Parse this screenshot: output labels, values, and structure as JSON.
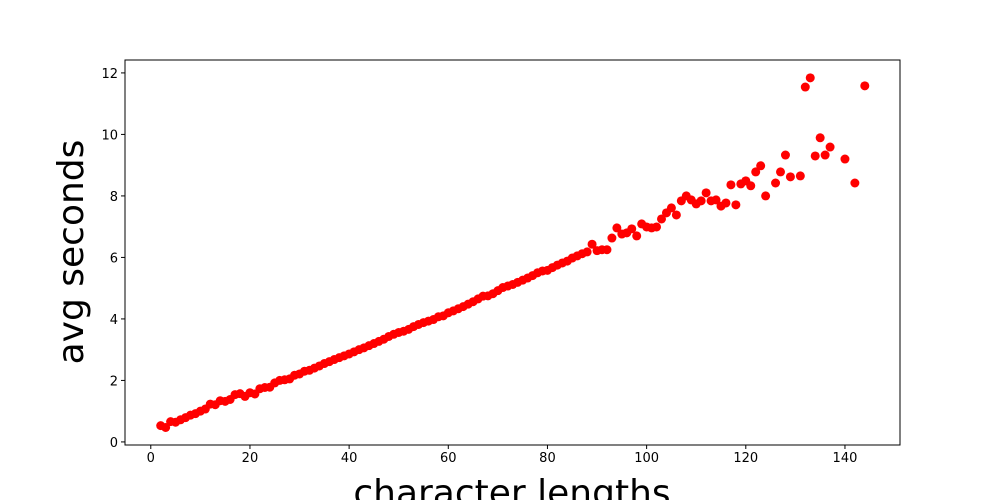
{
  "chart_data": {
    "type": "scatter",
    "x_label": "character lengths",
    "y_label": "avg seconds",
    "color": "#ff0000",
    "xlim": [
      -5.2,
      151.1
    ],
    "ylim": [
      -0.1,
      12.42
    ],
    "xticks": [
      0,
      20,
      40,
      60,
      80,
      100,
      120,
      140
    ],
    "yticks": [
      0,
      2,
      4,
      6,
      8,
      10,
      12
    ],
    "x": [
      2,
      3,
      4,
      5,
      6,
      7,
      8,
      9,
      10,
      11,
      12,
      13,
      14,
      15,
      16,
      17,
      18,
      19,
      20,
      21,
      22,
      23,
      24,
      25,
      26,
      27,
      28,
      29,
      30,
      31,
      32,
      33,
      34,
      35,
      36,
      37,
      38,
      39,
      40,
      41,
      42,
      43,
      44,
      45,
      46,
      47,
      48,
      49,
      50,
      51,
      52,
      53,
      54,
      55,
      56,
      57,
      58,
      59,
      60,
      61,
      62,
      63,
      64,
      65,
      66,
      67,
      68,
      69,
      70,
      71,
      72,
      73,
      74,
      75,
      76,
      77,
      78,
      79,
      80,
      81,
      82,
      83,
      84,
      85,
      86,
      87,
      88,
      89,
      90,
      91,
      92,
      93,
      94,
      95,
      96,
      97,
      98,
      99,
      100,
      101,
      102,
      103,
      104,
      105,
      106,
      107,
      108,
      109,
      110,
      111,
      112,
      113,
      114,
      115,
      116,
      117,
      118,
      119,
      120,
      121,
      122,
      123,
      124,
      126,
      127,
      128,
      129,
      131,
      132,
      133,
      134,
      135,
      136,
      137,
      140,
      142,
      144
    ],
    "y": [
      0.53,
      0.47,
      0.66,
      0.64,
      0.72,
      0.79,
      0.87,
      0.92,
      1.0,
      1.07,
      1.23,
      1.21,
      1.34,
      1.32,
      1.38,
      1.54,
      1.57,
      1.48,
      1.6,
      1.56,
      1.73,
      1.77,
      1.78,
      1.92,
      2.0,
      2.02,
      2.05,
      2.17,
      2.21,
      2.3,
      2.33,
      2.4,
      2.47,
      2.55,
      2.61,
      2.68,
      2.74,
      2.8,
      2.86,
      2.93,
      3.0,
      3.06,
      3.13,
      3.2,
      3.27,
      3.34,
      3.43,
      3.5,
      3.56,
      3.6,
      3.66,
      3.75,
      3.82,
      3.88,
      3.93,
      3.98,
      4.07,
      4.1,
      4.2,
      4.26,
      4.33,
      4.4,
      4.48,
      4.56,
      4.65,
      4.74,
      4.75,
      4.82,
      4.92,
      5.02,
      5.07,
      5.12,
      5.19,
      5.26,
      5.33,
      5.41,
      5.5,
      5.56,
      5.58,
      5.67,
      5.75,
      5.82,
      5.88,
      5.98,
      6.05,
      6.12,
      6.18,
      6.43,
      6.22,
      6.25,
      6.25,
      6.63,
      6.96,
      6.76,
      6.8,
      6.93,
      6.7,
      7.09,
      6.99,
      6.96,
      6.99,
      7.25,
      7.45,
      7.61,
      7.38,
      7.84,
      8.0,
      7.87,
      7.74,
      7.84,
      8.1,
      7.84,
      7.87,
      7.67,
      7.77,
      8.36,
      7.71,
      8.39,
      8.49,
      8.33,
      8.78,
      8.98,
      8.0,
      8.42,
      8.78,
      9.33,
      8.62,
      8.65,
      11.54,
      11.84,
      9.3,
      9.89,
      9.33,
      9.59,
      9.2,
      8.42,
      11.58
    ]
  }
}
